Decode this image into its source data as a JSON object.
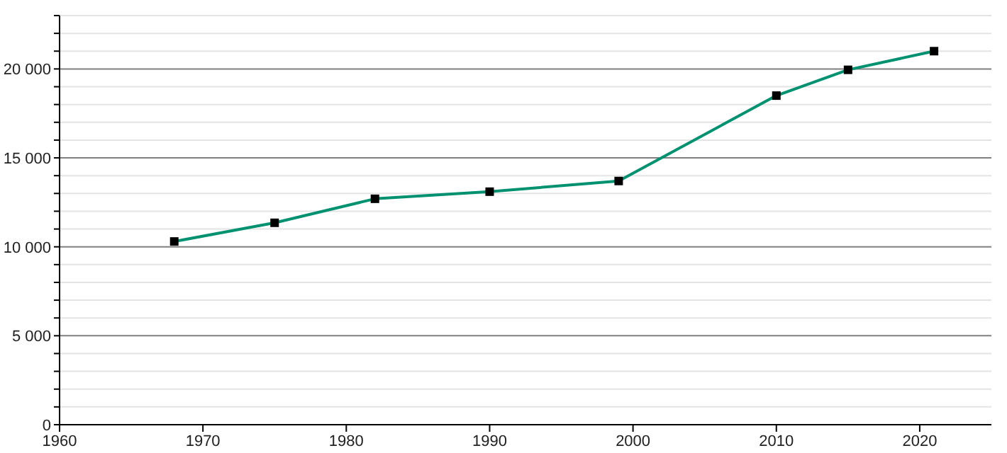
{
  "chart_data": {
    "type": "line",
    "x": [
      1968,
      1975,
      1982,
      1990,
      1999,
      2010,
      2015,
      2021
    ],
    "series": [
      {
        "color": "#009270",
        "values": [
          10300,
          11350,
          12700,
          13100,
          13700,
          18500,
          19950,
          21000
        ]
      }
    ],
    "xlim": [
      1960,
      2025
    ],
    "xticks": [
      1960,
      1970,
      1980,
      1990,
      2000,
      2010,
      2020
    ],
    "ylim": [
      0,
      23000
    ],
    "yticks": [
      {
        "value": 0,
        "label": "0"
      },
      {
        "value": 1000,
        "label": null
      },
      {
        "value": 2000,
        "label": null
      },
      {
        "value": 3000,
        "label": null
      },
      {
        "value": 4000,
        "label": null
      },
      {
        "value": 5000,
        "label": "5 000"
      },
      {
        "value": 6000,
        "label": null
      },
      {
        "value": 7000,
        "label": null
      },
      {
        "value": 8000,
        "label": null
      },
      {
        "value": 9000,
        "label": null
      },
      {
        "value": 10000,
        "label": "10 000"
      },
      {
        "value": 11000,
        "label": null
      },
      {
        "value": 12000,
        "label": null
      },
      {
        "value": 13000,
        "label": null
      },
      {
        "value": 14000,
        "label": null
      },
      {
        "value": 15000,
        "label": "15 000"
      },
      {
        "value": 16000,
        "label": null
      },
      {
        "value": 17000,
        "label": null
      },
      {
        "value": 18000,
        "label": null
      },
      {
        "value": 19000,
        "label": null
      },
      {
        "value": 20000,
        "label": "20 000"
      },
      {
        "value": 21000,
        "label": null
      },
      {
        "value": 22000,
        "label": null
      },
      {
        "value": 23000,
        "label": null
      }
    ],
    "grid": "y",
    "marker": "square",
    "line_style": "solid"
  }
}
